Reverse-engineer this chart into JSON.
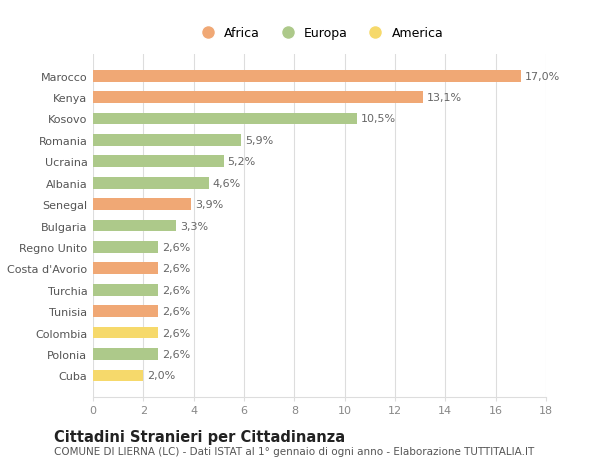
{
  "categories": [
    "Cuba",
    "Polonia",
    "Colombia",
    "Tunisia",
    "Turchia",
    "Costa d'Avorio",
    "Regno Unito",
    "Bulgaria",
    "Senegal",
    "Albania",
    "Ucraina",
    "Romania",
    "Kosovo",
    "Kenya",
    "Marocco"
  ],
  "values": [
    2.0,
    2.6,
    2.6,
    2.6,
    2.6,
    2.6,
    2.6,
    3.3,
    3.9,
    4.6,
    5.2,
    5.9,
    10.5,
    13.1,
    17.0
  ],
  "labels": [
    "2,0%",
    "2,6%",
    "2,6%",
    "2,6%",
    "2,6%",
    "2,6%",
    "2,6%",
    "3,3%",
    "3,9%",
    "4,6%",
    "5,2%",
    "5,9%",
    "10,5%",
    "13,1%",
    "17,0%"
  ],
  "colors": [
    "#f6d96b",
    "#adc98a",
    "#f6d96b",
    "#f0a875",
    "#adc98a",
    "#f0a875",
    "#adc98a",
    "#adc98a",
    "#f0a875",
    "#adc98a",
    "#adc98a",
    "#adc98a",
    "#adc98a",
    "#f0a875",
    "#f0a875"
  ],
  "legend_labels": [
    "Africa",
    "Europa",
    "America"
  ],
  "legend_colors": [
    "#f0a875",
    "#adc98a",
    "#f6d96b"
  ],
  "title": "Cittadini Stranieri per Cittadinanza",
  "subtitle": "COMUNE DI LIERNA (LC) - Dati ISTAT al 1° gennaio di ogni anno - Elaborazione TUTTITALIA.IT",
  "xlim": [
    0,
    18
  ],
  "xticks": [
    0,
    2,
    4,
    6,
    8,
    10,
    12,
    14,
    16,
    18
  ],
  "bg_color": "#ffffff",
  "grid_color": "#dddddd",
  "bar_height": 0.55,
  "label_fontsize": 8,
  "title_fontsize": 10.5,
  "subtitle_fontsize": 7.5,
  "ytick_fontsize": 8,
  "xtick_fontsize": 8
}
